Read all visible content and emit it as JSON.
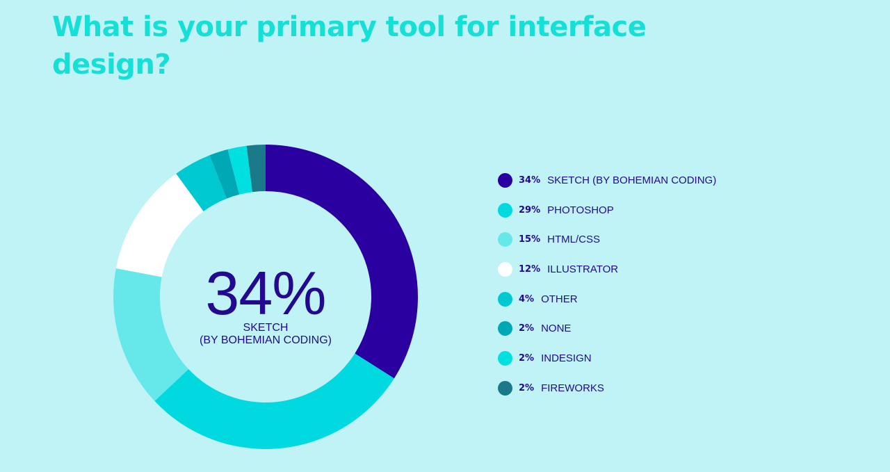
{
  "title": "What is your primary tool for interface design?",
  "colors": {
    "background": "#bff3f5",
    "title": "#16dfd6",
    "text": "#22098f"
  },
  "center": {
    "value": "34%",
    "label_line1": "SKETCH",
    "label_line2": "(BY BOHEMIAN CODING)"
  },
  "chart_data": {
    "type": "pie",
    "donut": true,
    "categories": [
      "SKETCH (BY BOHEMIAN CODING)",
      "PHOTOSHOP",
      "HTML/CSS",
      "ILLUSTRATOR",
      "OTHER",
      "NONE",
      "INDESIGN",
      "FIREWORKS"
    ],
    "values": [
      34,
      29,
      15,
      12,
      4,
      2,
      2,
      2
    ],
    "colors": [
      "#2a00a0",
      "#00d9e0",
      "#66e8ea",
      "#ffffff",
      "#00c8d0",
      "#00a8b6",
      "#00e0e0",
      "#1b7a8a"
    ],
    "legend": [
      {
        "pct": "34%",
        "label": "SKETCH (BY BOHEMIAN CODING)"
      },
      {
        "pct": "29%",
        "label": "PHOTOSHOP"
      },
      {
        "pct": "15%",
        "label": "HTML/CSS"
      },
      {
        "pct": "12%",
        "label": "ILLUSTRATOR"
      },
      {
        "pct": "4%",
        "label": "OTHER"
      },
      {
        "pct": "2%",
        "label": "NONE"
      },
      {
        "pct": "2%",
        "label": "INDESIGN"
      },
      {
        "pct": "2%",
        "label": "FIREWORKS"
      }
    ],
    "legend_position": "right"
  }
}
